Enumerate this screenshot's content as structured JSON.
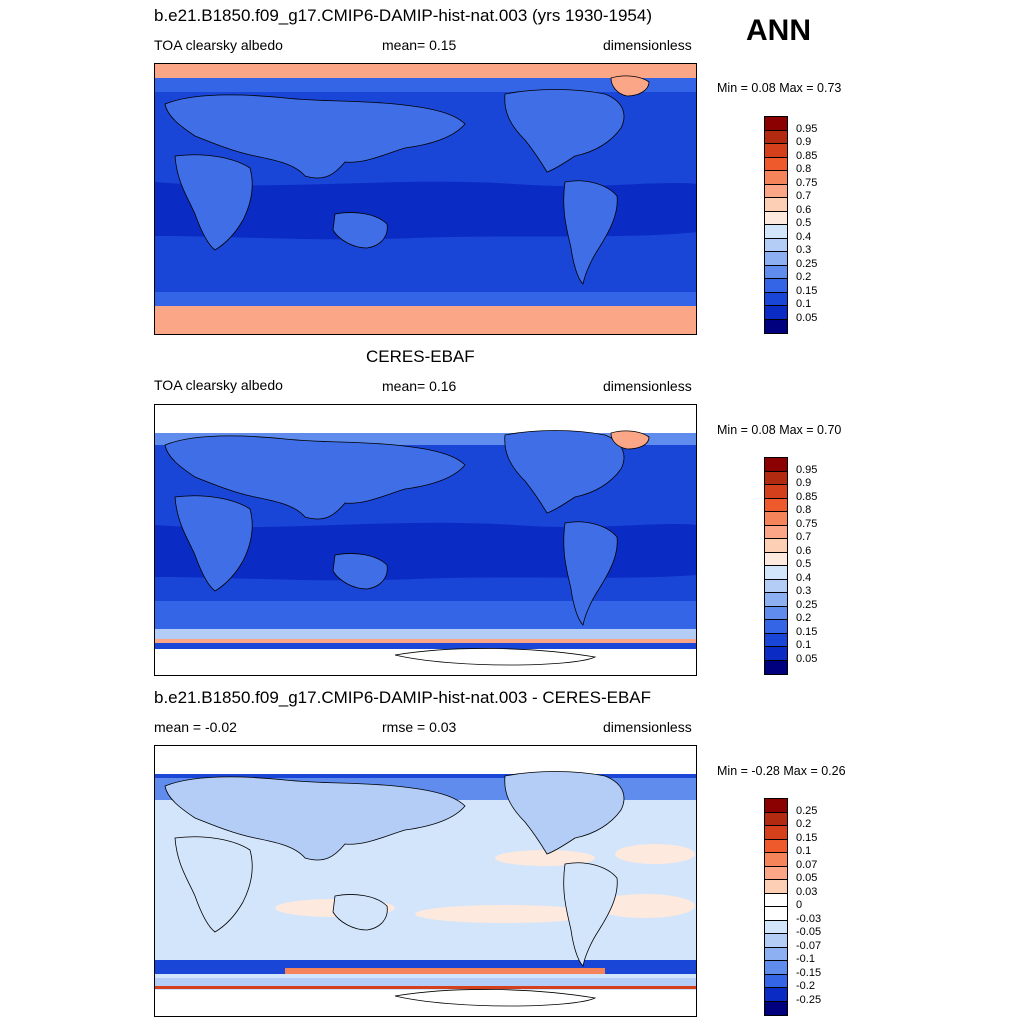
{
  "season_label": "ANN",
  "panels": [
    {
      "title": "b.e21.B1850.f09_g17.CMIP6-DAMIP-hist-nat.003 (yrs 1930-1954)",
      "left_text": "TOA clearsky albedo",
      "center_text": "mean=   0.15",
      "right_text": "dimensionless",
      "minmax_text": "Min =   0.08 Max =   0.73",
      "colorbar_labels": [
        "0.95",
        "0.9",
        "0.85",
        "0.8",
        "0.75",
        "0.7",
        "0.6",
        "0.5",
        "0.4",
        "0.3",
        "0.25",
        "0.2",
        "0.15",
        "0.1",
        "0.05"
      ]
    },
    {
      "title": "CERES-EBAF",
      "left_text": "TOA clearsky albedo",
      "center_text": "mean=   0.16",
      "right_text": "dimensionless",
      "minmax_text": "Min =   0.08 Max =   0.70",
      "colorbar_labels": [
        "0.95",
        "0.9",
        "0.85",
        "0.8",
        "0.75",
        "0.7",
        "0.6",
        "0.5",
        "0.4",
        "0.3",
        "0.25",
        "0.2",
        "0.15",
        "0.1",
        "0.05"
      ]
    },
    {
      "title": "b.e21.B1850.f09_g17.CMIP6-DAMIP-hist-nat.003 - CERES-EBAF",
      "left_text": "mean =  -0.02",
      "center_text": "rmse =   0.03",
      "right_text": "dimensionless",
      "minmax_text": "Min =  -0.28 Max =   0.26",
      "colorbar_labels": [
        "0.25",
        "0.2",
        "0.15",
        "0.1",
        "0.07",
        "0.05",
        "0.03",
        "0",
        "-0.03",
        "-0.05",
        "-0.07",
        "-0.1",
        "-0.15",
        "-0.2",
        "-0.25"
      ]
    }
  ],
  "colors": {
    "abs_scale": [
      "#8b0000",
      "#b22a10",
      "#d5401c",
      "#ee5a2c",
      "#f5845b",
      "#fba787",
      "#fdcfb5",
      "#fde9dd",
      "#d3e5fb",
      "#b3cdf7",
      "#8cb0f2",
      "#5f8ced",
      "#3465e6",
      "#1a46d8",
      "#0b2cc4",
      "#00007f"
    ],
    "diff_scale": [
      "#8b0000",
      "#b22a10",
      "#d5401c",
      "#ee5a2c",
      "#f5845b",
      "#fba787",
      "#fdcfb5",
      "#ffffff",
      "#ffffff",
      "#d3e5fb",
      "#b3cdf7",
      "#8cb0f2",
      "#5f8ced",
      "#3465e6",
      "#1a46d8",
      "#0b2cc4",
      "#00007f"
    ],
    "ocean_deep": "#0b2cc4",
    "ocean_mid": "#1a46d8",
    "land": "#3f6ee6",
    "ice": "#fba787",
    "diff_background": "#d3e5fb"
  }
}
